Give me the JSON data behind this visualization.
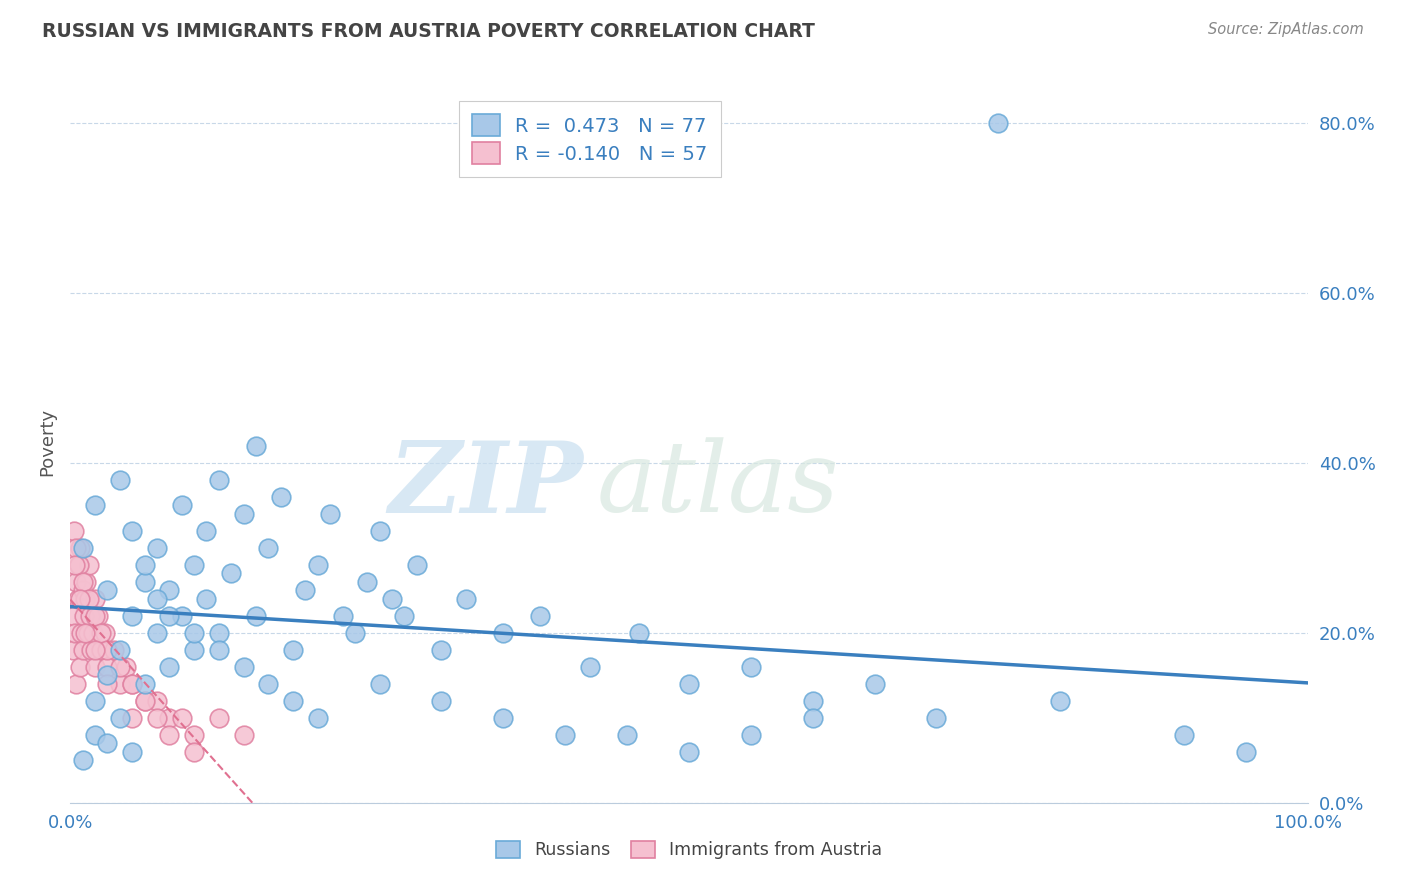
{
  "title": "RUSSIAN VS IMMIGRANTS FROM AUSTRIA POVERTY CORRELATION CHART",
  "source": "Source: ZipAtlas.com",
  "ylabel": "Poverty",
  "r_russian": 0.473,
  "n_russian": 77,
  "r_austria": -0.14,
  "n_austria": 57,
  "russian_color": "#a8c8e8",
  "russian_edge_color": "#6aaad8",
  "austria_color": "#f5c0d0",
  "austria_edge_color": "#e080a0",
  "russian_line_color": "#3a7fbf",
  "austria_line_color": "#e07090",
  "watermark_color": "#d8e8f0",
  "grid_color": "#c8d8e8",
  "title_color": "#444444",
  "axis_label_color": "#3a7fbf",
  "legend_r_color": "#333333",
  "legend_val_color": "#3a7fbf",
  "xlim": [
    0,
    100
  ],
  "ylim": [
    0,
    85
  ],
  "yticks": [
    0,
    20,
    40,
    60,
    80
  ],
  "rus_x": [
    1,
    2,
    2,
    3,
    3,
    4,
    4,
    5,
    5,
    6,
    6,
    7,
    7,
    8,
    8,
    9,
    9,
    10,
    10,
    11,
    11,
    12,
    12,
    13,
    14,
    15,
    15,
    16,
    17,
    18,
    19,
    20,
    21,
    22,
    23,
    24,
    25,
    26,
    27,
    28,
    30,
    32,
    35,
    38,
    42,
    46,
    50,
    55,
    60,
    65,
    70,
    75,
    80,
    1,
    2,
    3,
    4,
    5,
    6,
    7,
    8,
    10,
    12,
    14,
    16,
    18,
    20,
    25,
    30,
    35,
    40,
    45,
    50,
    55,
    90,
    95,
    60
  ],
  "rus_y": [
    5,
    8,
    12,
    7,
    15,
    10,
    18,
    6,
    22,
    14,
    26,
    20,
    30,
    16,
    25,
    22,
    35,
    18,
    28,
    24,
    32,
    20,
    38,
    27,
    34,
    22,
    42,
    30,
    36,
    18,
    25,
    28,
    34,
    22,
    20,
    26,
    32,
    24,
    22,
    28,
    18,
    24,
    20,
    22,
    16,
    20,
    14,
    16,
    12,
    14,
    10,
    80,
    12,
    30,
    35,
    25,
    38,
    32,
    28,
    24,
    22,
    20,
    18,
    16,
    14,
    12,
    10,
    14,
    12,
    10,
    8,
    8,
    6,
    8,
    8,
    6,
    10
  ],
  "aut_x": [
    0.2,
    0.3,
    0.4,
    0.5,
    0.5,
    0.6,
    0.7,
    0.8,
    0.8,
    0.9,
    1.0,
    1.0,
    1.1,
    1.2,
    1.3,
    1.4,
    1.5,
    1.6,
    1.7,
    1.8,
    2.0,
    2.0,
    2.2,
    2.5,
    2.8,
    3.0,
    3.5,
    4.0,
    4.5,
    5.0,
    6.0,
    7.0,
    8.0,
    9.0,
    10.0,
    12.0,
    14.0,
    0.3,
    0.5,
    0.7,
    1.0,
    1.5,
    2.0,
    2.5,
    3.0,
    4.0,
    5.0,
    6.0,
    7.0,
    8.0,
    10.0,
    0.4,
    0.8,
    1.2,
    2.0,
    3.0,
    5.0
  ],
  "aut_y": [
    18,
    22,
    20,
    26,
    14,
    24,
    28,
    30,
    16,
    20,
    25,
    18,
    22,
    24,
    26,
    20,
    28,
    22,
    18,
    20,
    24,
    16,
    22,
    18,
    20,
    16,
    18,
    14,
    16,
    14,
    12,
    12,
    10,
    10,
    8,
    10,
    8,
    32,
    30,
    28,
    26,
    24,
    22,
    20,
    18,
    16,
    14,
    12,
    10,
    8,
    6,
    28,
    24,
    20,
    18,
    14,
    10
  ]
}
